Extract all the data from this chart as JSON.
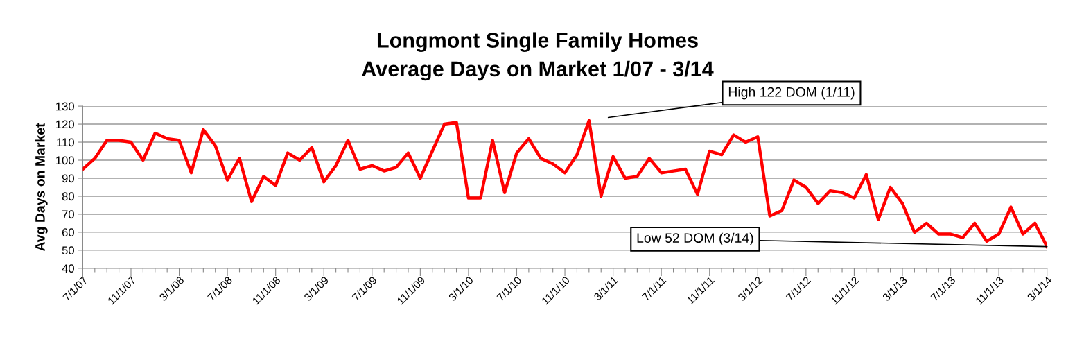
{
  "chart_data": {
    "type": "line",
    "title": "Longmont Single Family Homes",
    "subtitle": "Average Days on Market 1/07 - 3/14",
    "ylabel": "Avg Days on Market",
    "categories": [
      "7/1/07",
      null,
      null,
      null,
      "11/1/07",
      null,
      null,
      null,
      "3/1/08",
      null,
      null,
      null,
      "7/1/08",
      null,
      null,
      null,
      "11/1/08",
      null,
      null,
      null,
      "3/1/09",
      null,
      null,
      null,
      "7/1/09",
      null,
      null,
      null,
      "11/1/09",
      null,
      null,
      null,
      "3/1/10",
      null,
      null,
      null,
      "7/1/10",
      null,
      null,
      null,
      "11/1/10",
      null,
      null,
      null,
      "3/1/11",
      null,
      null,
      null,
      "7/1/11",
      null,
      null,
      null,
      "11/1/11",
      null,
      null,
      null,
      "3/1/12",
      null,
      null,
      null,
      "7/1/12",
      null,
      null,
      null,
      "11/1/12",
      null,
      null,
      null,
      "3/1/13",
      null,
      null,
      null,
      "7/1/13",
      null,
      null,
      null,
      "11/1/13",
      null,
      null,
      null,
      "3/1/14"
    ],
    "series": [
      {
        "color": "#ff0000",
        "values": [
          95,
          101,
          111,
          111,
          110,
          100,
          115,
          112,
          111,
          93,
          117,
          108,
          89,
          101,
          77,
          91,
          86,
          104,
          100,
          107,
          88,
          97,
          111,
          95,
          97,
          94,
          96,
          104,
          90,
          105,
          120,
          121,
          79,
          79,
          111,
          82,
          104,
          112,
          101,
          98,
          93,
          103,
          122,
          80,
          102,
          90,
          91,
          101,
          93,
          94,
          95,
          81,
          105,
          103,
          114,
          110,
          113,
          69,
          72,
          89,
          85,
          76,
          83,
          82,
          79,
          92,
          67,
          85,
          76,
          60,
          65,
          59,
          59,
          57,
          65,
          55,
          59,
          74,
          59,
          65,
          52
        ]
      }
    ],
    "ylim": [
      40,
      130
    ],
    "yticks": [
      40,
      50,
      60,
      70,
      80,
      90,
      100,
      110,
      120,
      130
    ],
    "grid": "y",
    "marker": "none",
    "line_style": "solid",
    "annotations": [
      "High 122 DOM (1/11)",
      {
        "text": "Low 52 DOM (3/14)",
        "x": "3/1/14",
        "y": 52
      }
    ]
  }
}
